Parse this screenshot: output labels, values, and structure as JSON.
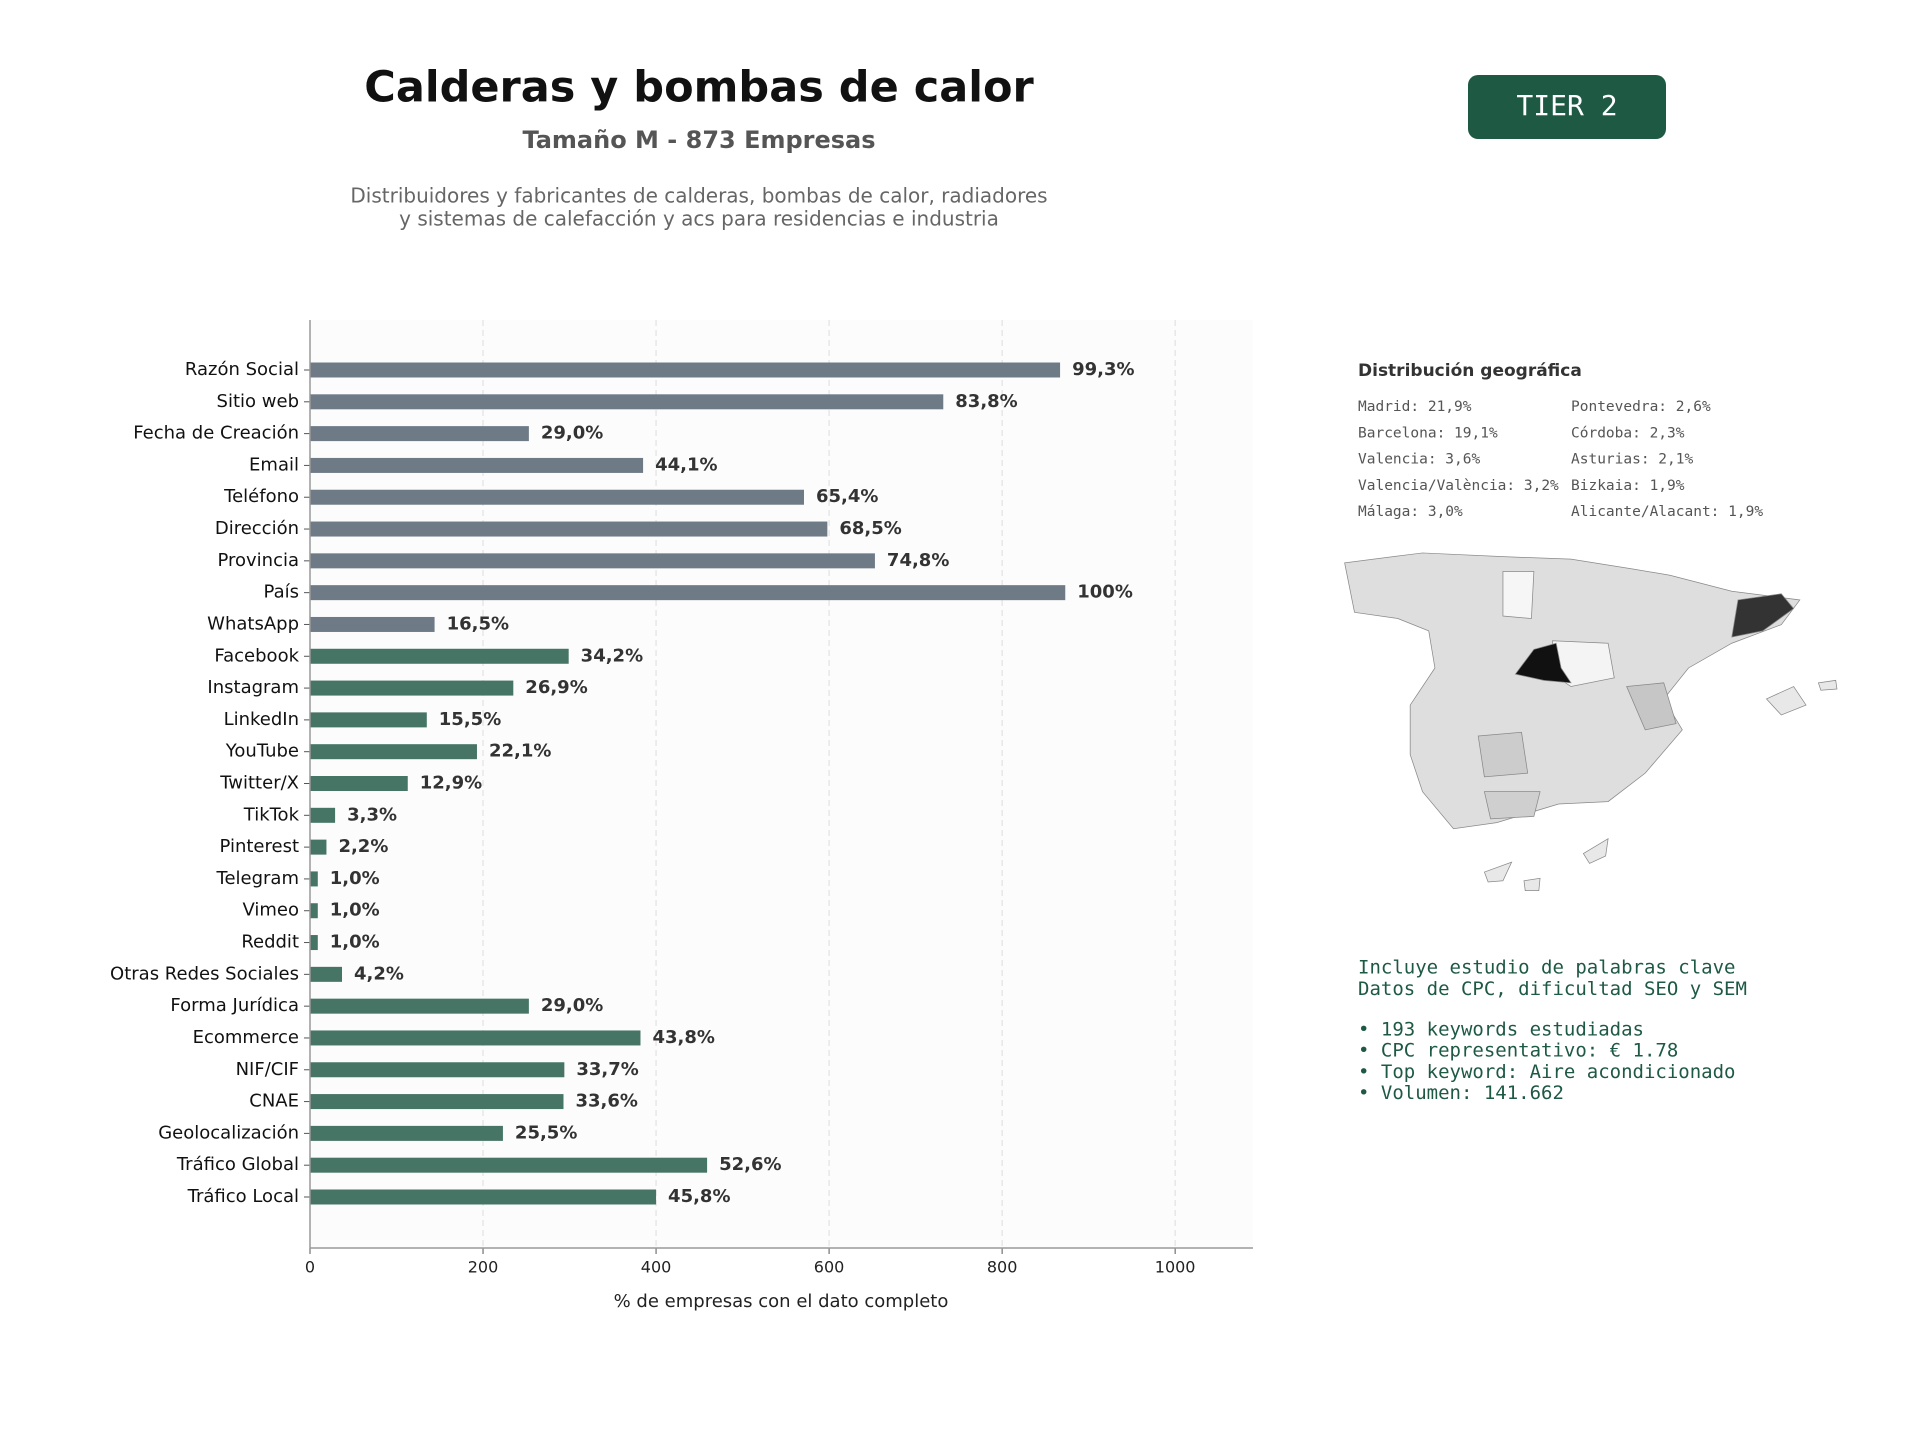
{
  "header": {
    "title": "Calderas y bombas de calor",
    "subtitle": "Tamaño M - 873 Empresas",
    "description": [
      "Distribuidores y fabricantes de calderas, bombas de calor, radiadores",
      "y sistemas de calefacción y acs para residencias e industria"
    ]
  },
  "badge": "TIER 2",
  "chart_data": {
    "type": "barh",
    "categories": [
      "Razón Social",
      "Sitio web",
      "Fecha de Creación",
      "Email",
      "Teléfono",
      "Dirección",
      "Provincia",
      "País",
      "WhatsApp",
      "Facebook",
      "Instagram",
      "LinkedIn",
      "YouTube",
      "Twitter/X",
      "TikTok",
      "Pinterest",
      "Telegram",
      "Vimeo",
      "Reddit",
      "Otras Redes Sociales",
      "Forma Jurídica",
      "Ecommerce",
      "NIF/CIF",
      "CNAE",
      "Geolocalización",
      "Tráfico Global",
      "Tráfico Local"
    ],
    "values": [
      867,
      732,
      253,
      385,
      571,
      598,
      653,
      873,
      144,
      299,
      235,
      135,
      193,
      113,
      29,
      19,
      9,
      9,
      9,
      37,
      253,
      382,
      294,
      293,
      223,
      459,
      400
    ],
    "value_labels": [
      "99,3%",
      "83,8%",
      "29,0%",
      "44,1%",
      "65,4%",
      "68,5%",
      "74,8%",
      "100%",
      "16,5%",
      "34,2%",
      "26,9%",
      "15,5%",
      "22,1%",
      "12,9%",
      "3,3%",
      "2,2%",
      "1,0%",
      "1,0%",
      "1,0%",
      "4,2%",
      "29,0%",
      "43,8%",
      "33,7%",
      "33,6%",
      "25,5%",
      "52,6%",
      "45,8%"
    ],
    "colors": [
      "#6e7b87",
      "#6e7b87",
      "#6e7b87",
      "#6e7b87",
      "#6e7b87",
      "#6e7b87",
      "#6e7b87",
      "#6e7b87",
      "#6e7b87",
      "#467565",
      "#467565",
      "#467565",
      "#467565",
      "#467565",
      "#467565",
      "#467565",
      "#467565",
      "#467565",
      "#467565",
      "#467565",
      "#467565",
      "#467565",
      "#467565",
      "#467565",
      "#467565",
      "#467565",
      "#467565"
    ],
    "xlim": [
      0,
      1090
    ],
    "xticks": [
      0,
      200,
      400,
      600,
      800,
      1000
    ],
    "grid": true,
    "xlabel": "% de empresas con el dato completo"
  },
  "geo": {
    "title": "Distribución geográfica",
    "items": [
      "Madrid: 21,9%",
      "Barcelona: 19,1%",
      "Valencia: 3,6%",
      "Valencia/València: 3,2%",
      "Málaga: 3,0%",
      "Pontevedra: 2,6%",
      "Córdoba: 2,3%",
      "Asturias: 2,1%",
      "Bizkaia: 1,9%",
      "Alicante/Alacant: 1,9%"
    ]
  },
  "keywords": {
    "intro": [
      "Incluye estudio de palabras clave",
      "Datos de CPC, dificultad SEO y SEM"
    ],
    "bullets": [
      "• 193 keywords estudiadas",
      "• CPC representativo: € 1.78",
      "• Top keyword: Aire acondicionado",
      "• Volumen: 141.662"
    ]
  }
}
